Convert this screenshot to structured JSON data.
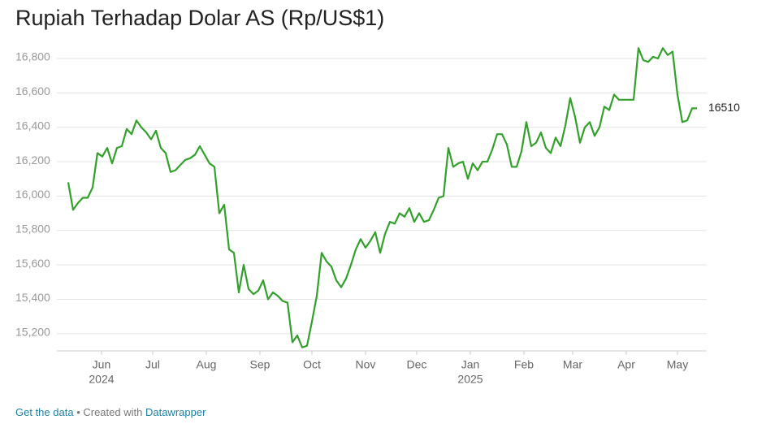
{
  "chart_data": {
    "type": "line",
    "title": "Rupiah Terhadap Dolar AS (Rp/US$1)",
    "color": "#33a02c",
    "grid": true,
    "ylim": [
      15100,
      16850
    ],
    "yticks": [
      {
        "value": 15200,
        "label": "15,200"
      },
      {
        "value": 15400,
        "label": "15,400"
      },
      {
        "value": 15600,
        "label": "15,600"
      },
      {
        "value": 15800,
        "label": "15,800"
      },
      {
        "value": 16000,
        "label": "16,000"
      },
      {
        "value": 16200,
        "label": "16,200"
      },
      {
        "value": 16400,
        "label": "16,400"
      },
      {
        "value": 16600,
        "label": "16,600"
      },
      {
        "value": 16800,
        "label": "16,800"
      }
    ],
    "xlim": [
      -2.33,
      131
    ],
    "xticks": [
      {
        "value": 6.83,
        "label": "Jun",
        "sublabel": "2024"
      },
      {
        "value": 17.33,
        "label": "Jul"
      },
      {
        "value": 28.33,
        "label": "Aug"
      },
      {
        "value": 39.33,
        "label": "Sep"
      },
      {
        "value": 50,
        "label": "Oct"
      },
      {
        "value": 61,
        "label": "Nov"
      },
      {
        "value": 71.5,
        "label": "Dec"
      },
      {
        "value": 82.5,
        "label": "Jan",
        "sublabel": "2025"
      },
      {
        "value": 93.5,
        "label": "Feb"
      },
      {
        "value": 103.5,
        "label": "Mar"
      },
      {
        "value": 114.5,
        "label": "Apr"
      },
      {
        "value": 125,
        "label": "May"
      }
    ],
    "values": [
      16080,
      15920,
      15960,
      15990,
      15990,
      16050,
      16250,
      16230,
      16280,
      16190,
      16280,
      16290,
      16390,
      16360,
      16440,
      16400,
      16370,
      16330,
      16380,
      16280,
      16250,
      16140,
      16150,
      16180,
      16210,
      16220,
      16240,
      16290,
      16240,
      16190,
      16170,
      15900,
      15950,
      15690,
      15670,
      15440,
      15600,
      15460,
      15430,
      15450,
      15510,
      15400,
      15440,
      15420,
      15390,
      15380,
      15150,
      15190,
      15120,
      15130,
      15270,
      15420,
      15670,
      15620,
      15590,
      15510,
      15470,
      15520,
      15600,
      15690,
      15750,
      15700,
      15740,
      15790,
      15670,
      15780,
      15850,
      15840,
      15900,
      15880,
      15930,
      15850,
      15900,
      15850,
      15860,
      15920,
      15990,
      16000,
      16280,
      16170,
      16190,
      16200,
      16100,
      16190,
      16150,
      16200,
      16200,
      16270,
      16360,
      16360,
      16300,
      16170,
      16170,
      16260,
      16430,
      16290,
      16310,
      16370,
      16280,
      16250,
      16340,
      16290,
      16410,
      16570,
      16460,
      16310,
      16400,
      16430,
      16350,
      16400,
      16520,
      16500,
      16590,
      16560,
      16560,
      16560,
      16560,
      16860,
      16790,
      16780,
      16810,
      16800,
      16860,
      16820,
      16840,
      16590,
      16430,
      16440,
      16510,
      16510
    ]
  },
  "footer": {
    "link": "Get the data",
    "text": "• Created with",
    "credit": "Datawrapper"
  }
}
